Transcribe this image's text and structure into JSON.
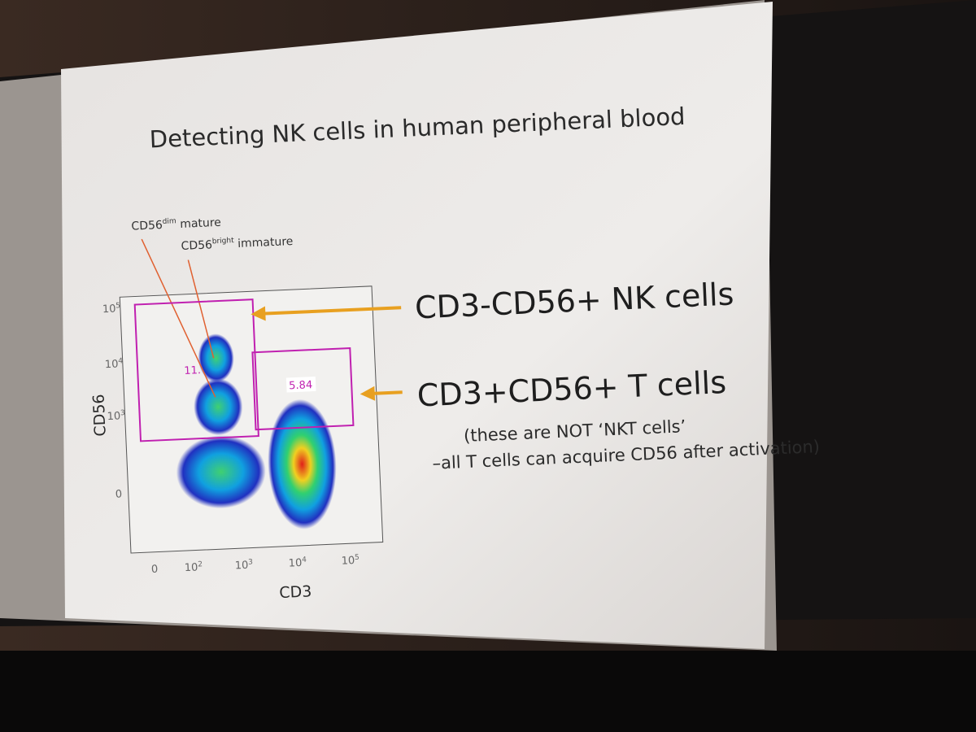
{
  "slide": {
    "title": "Detecting NK cells in human peripheral blood",
    "annotations": [
      {
        "base": "CD56",
        "sup": "dim",
        "rest": " mature"
      },
      {
        "base": "CD56",
        "sup": "bright",
        "rest": " immature"
      }
    ],
    "plot": {
      "x_label": "CD3",
      "y_label": "CD56",
      "x_ticks": [
        {
          "base": "0"
        },
        {
          "base": "10",
          "sup": "2"
        },
        {
          "base": "10",
          "sup": "3"
        },
        {
          "base": "10",
          "sup": "4"
        },
        {
          "base": "10",
          "sup": "5"
        }
      ],
      "y_ticks": [
        {
          "base": "0"
        },
        {
          "base": "10",
          "sup": "3"
        },
        {
          "base": "10",
          "sup": "4"
        },
        {
          "base": "10",
          "sup": "5"
        }
      ],
      "gate_labels": [
        "11.",
        "5.84"
      ]
    },
    "callouts": [
      "CD3-CD56+ NK cells",
      "CD3+CD56+ T cells"
    ],
    "notes": [
      "(these are NOT ‘NKT cells’",
      "–all T cells can acquire CD56 after activation)"
    ]
  }
}
